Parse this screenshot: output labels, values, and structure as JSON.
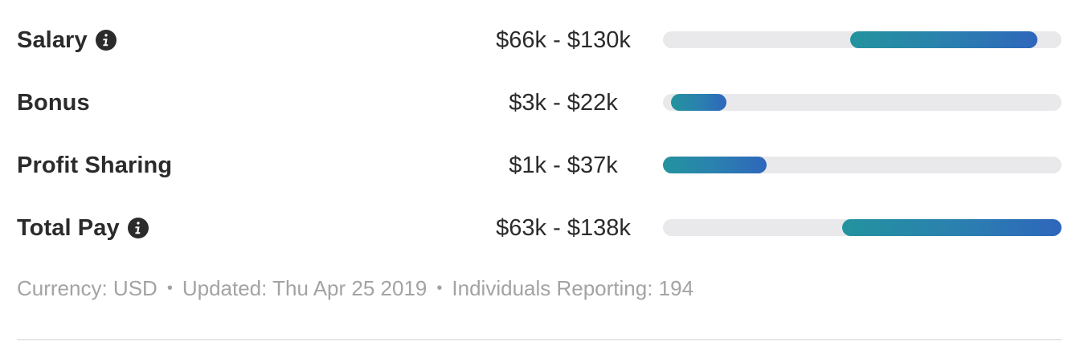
{
  "rows": [
    {
      "label": "Salary",
      "has_info": true,
      "range": "$66k - $130k",
      "bar_start": 0.47,
      "bar_end": 0.94
    },
    {
      "label": "Bonus",
      "has_info": false,
      "range": "$3k - $22k",
      "bar_start": 0.02,
      "bar_end": 0.16
    },
    {
      "label": "Profit Sharing",
      "has_info": false,
      "range": "$1k - $37k",
      "bar_start": 0.0,
      "bar_end": 0.26
    },
    {
      "label": "Total Pay",
      "has_info": true,
      "range": "$63k - $138k",
      "bar_start": 0.45,
      "bar_end": 1.0
    }
  ],
  "meta": {
    "currency": "Currency: USD",
    "updated": "Updated: Thu Apr 25 2019",
    "individuals": "Individuals Reporting: 194",
    "separator": "•"
  },
  "colors": {
    "text": "#2b2b2b",
    "muted": "#a3a3a3",
    "track": "#e9e9eb",
    "bar_start": "#23939e",
    "bar_end": "#2e66bb"
  },
  "icons": {
    "info": "info-circle-icon"
  }
}
